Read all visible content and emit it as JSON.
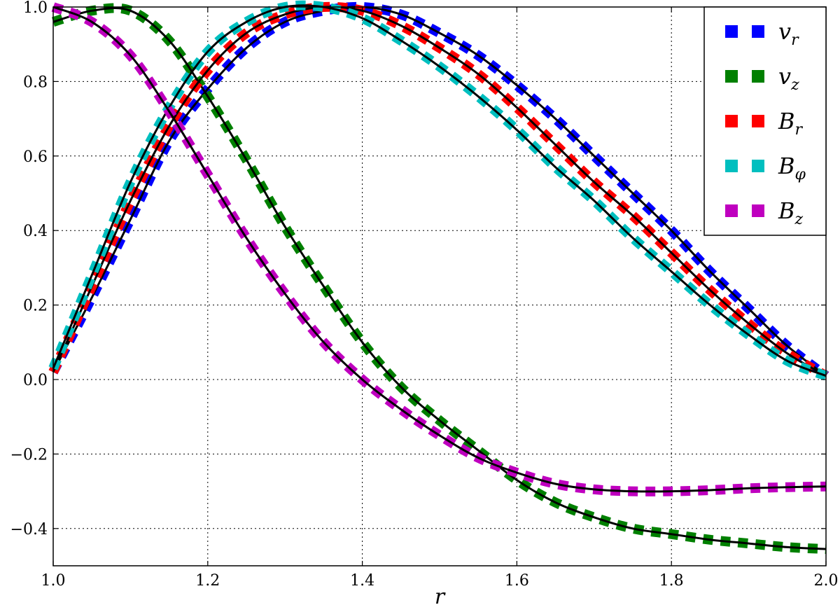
{
  "chart_data": {
    "type": "line",
    "title": "",
    "xlabel": "r",
    "ylabel": "",
    "xlim": [
      1.0,
      2.0
    ],
    "ylim": [
      -0.5,
      1.0
    ],
    "xticks": [
      1.0,
      1.2,
      1.4,
      1.6,
      1.8,
      2.0
    ],
    "xtick_labels": [
      "1.0",
      "1.2",
      "1.4",
      "1.6",
      "1.8",
      "2.0"
    ],
    "yticks": [
      -0.4,
      -0.2,
      0.0,
      0.2,
      0.4,
      0.6,
      0.8,
      1.0
    ],
    "ytick_labels": [
      "−0.4",
      "−0.2",
      "0.0",
      "0.2",
      "0.4",
      "0.6",
      "0.8",
      "1.0"
    ],
    "grid": true,
    "legend_position": "top-right",
    "x": [
      1.0,
      1.05,
      1.1,
      1.15,
      1.2,
      1.25,
      1.3,
      1.35,
      1.4,
      1.45,
      1.5,
      1.55,
      1.6,
      1.65,
      1.7,
      1.75,
      1.8,
      1.85,
      1.9,
      1.95,
      2.0
    ],
    "series": [
      {
        "name": "v_r",
        "legend_main": "v",
        "legend_sub": "r",
        "color": "#0000ff",
        "values": [
          0.02,
          0.22,
          0.43,
          0.64,
          0.78,
          0.89,
          0.96,
          0.99,
          1.0,
          0.98,
          0.93,
          0.87,
          0.79,
          0.7,
          0.6,
          0.5,
          0.4,
          0.29,
          0.19,
          0.09,
          0.01
        ]
      },
      {
        "name": "v_z",
        "legend_main": "v",
        "legend_sub": "z",
        "color": "#008000",
        "values": [
          0.96,
          0.99,
          0.99,
          0.91,
          0.76,
          0.59,
          0.41,
          0.25,
          0.1,
          -0.02,
          -0.11,
          -0.19,
          -0.27,
          -0.33,
          -0.37,
          -0.4,
          -0.415,
          -0.43,
          -0.44,
          -0.45,
          -0.455
        ]
      },
      {
        "name": "B_r",
        "legend_main": "B",
        "legend_sub": "r",
        "color": "#ff0000",
        "values": [
          0.02,
          0.25,
          0.48,
          0.68,
          0.83,
          0.93,
          0.98,
          1.0,
          0.99,
          0.95,
          0.89,
          0.82,
          0.73,
          0.63,
          0.53,
          0.44,
          0.34,
          0.24,
          0.15,
          0.07,
          0.01
        ]
      },
      {
        "name": "B_phi",
        "legend_main": "B",
        "legend_sub": "φ",
        "color": "#00bfbf",
        "values": [
          0.03,
          0.28,
          0.53,
          0.73,
          0.88,
          0.96,
          1.0,
          1.0,
          0.97,
          0.91,
          0.84,
          0.76,
          0.67,
          0.57,
          0.48,
          0.38,
          0.29,
          0.2,
          0.12,
          0.05,
          0.01
        ]
      },
      {
        "name": "B_z",
        "legend_main": "B",
        "legend_sub": "z",
        "color": "#bf00bf",
        "values": [
          1.0,
          0.96,
          0.87,
          0.72,
          0.55,
          0.38,
          0.23,
          0.1,
          0.0,
          -0.08,
          -0.15,
          -0.21,
          -0.25,
          -0.28,
          -0.295,
          -0.3,
          -0.3,
          -0.297,
          -0.292,
          -0.289,
          -0.287
        ]
      }
    ]
  }
}
